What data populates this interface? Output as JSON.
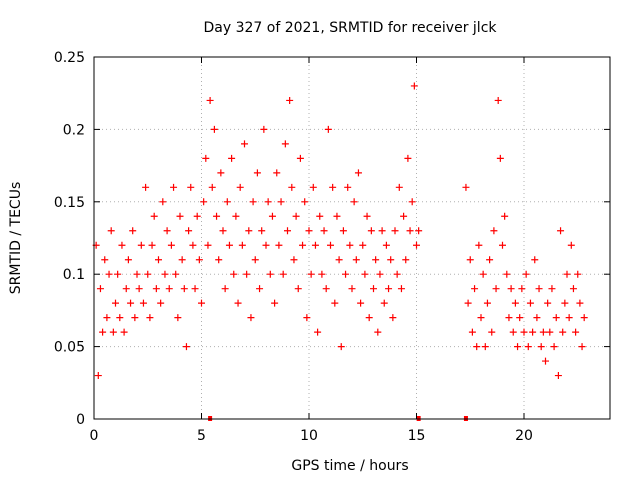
{
  "chart_data": {
    "type": "scatter",
    "title": "Day 327 of 2021, SRMTID for receiver jlck",
    "xlabel": "GPS time / hours",
    "ylabel": "SRMTID / TECUs",
    "xlim": [
      0,
      24
    ],
    "ylim": [
      0,
      0.25
    ],
    "xticks": [
      0,
      5,
      10,
      15,
      20
    ],
    "xtick_labels": [
      "0",
      "5",
      "10",
      "15",
      "20"
    ],
    "yticks": [
      0,
      0.05,
      0.1,
      0.15,
      0.2,
      0.25
    ],
    "ytick_labels": [
      "0",
      "0.05",
      "0.1",
      "0.15",
      "0.2",
      "0.25"
    ],
    "grid": true,
    "legend": "none",
    "series": [
      {
        "name": "SRMTID",
        "color": "#ff0000",
        "marker": "plus",
        "x": [
          0.1,
          0.2,
          0.3,
          0.4,
          0.5,
          0.6,
          0.7,
          0.8,
          0.9,
          1.0,
          1.1,
          1.2,
          1.3,
          1.4,
          1.5,
          1.6,
          1.7,
          1.8,
          1.9,
          2.0,
          2.1,
          2.2,
          2.3,
          2.4,
          2.5,
          2.6,
          2.7,
          2.8,
          2.9,
          3.0,
          3.1,
          3.2,
          3.3,
          3.4,
          3.5,
          3.6,
          3.7,
          3.8,
          3.9,
          4.0,
          4.1,
          4.2,
          4.3,
          4.4,
          4.5,
          4.6,
          4.7,
          4.8,
          4.9,
          5.0,
          5.1,
          5.2,
          5.3,
          5.4,
          5.5,
          5.6,
          5.7,
          5.8,
          5.9,
          6.0,
          6.1,
          6.2,
          6.3,
          6.4,
          6.5,
          6.6,
          6.7,
          6.8,
          6.9,
          7.0,
          7.1,
          7.2,
          7.3,
          7.4,
          7.5,
          7.6,
          7.7,
          7.8,
          7.9,
          8.0,
          8.1,
          8.2,
          8.3,
          8.4,
          8.5,
          8.6,
          8.7,
          8.8,
          8.9,
          9.0,
          9.1,
          9.2,
          9.3,
          9.4,
          9.5,
          9.6,
          9.7,
          9.8,
          9.9,
          10.0,
          10.1,
          10.2,
          10.3,
          10.4,
          10.5,
          10.6,
          10.7,
          10.8,
          10.9,
          11.0,
          11.1,
          11.2,
          11.3,
          11.4,
          11.5,
          11.6,
          11.7,
          11.8,
          11.9,
          12.0,
          12.1,
          12.2,
          12.3,
          12.4,
          12.5,
          12.6,
          12.7,
          12.8,
          12.9,
          13.0,
          13.1,
          13.2,
          13.3,
          13.4,
          13.5,
          13.6,
          13.7,
          13.8,
          13.9,
          14.0,
          14.1,
          14.2,
          14.3,
          14.4,
          14.5,
          14.6,
          14.7,
          14.8,
          14.9,
          15.0,
          15.1,
          17.3,
          17.4,
          17.5,
          17.6,
          17.7,
          17.8,
          17.9,
          18.0,
          18.1,
          18.2,
          18.3,
          18.4,
          18.5,
          18.6,
          18.7,
          18.8,
          18.9,
          19.0,
          19.1,
          19.2,
          19.3,
          19.4,
          19.5,
          19.6,
          19.7,
          19.8,
          19.9,
          20.0,
          20.1,
          20.2,
          20.3,
          20.4,
          20.5,
          20.6,
          20.7,
          20.8,
          20.9,
          21.0,
          21.1,
          21.2,
          21.3,
          21.4,
          21.5,
          21.6,
          21.7,
          21.8,
          21.9,
          22.0,
          22.1,
          22.2,
          22.3,
          22.4,
          22.5,
          22.6,
          22.7,
          22.8
        ],
        "y": [
          0.12,
          0.03,
          0.09,
          0.06,
          0.11,
          0.07,
          0.1,
          0.13,
          0.06,
          0.08,
          0.1,
          0.07,
          0.12,
          0.06,
          0.09,
          0.11,
          0.08,
          0.13,
          0.07,
          0.1,
          0.09,
          0.12,
          0.08,
          0.16,
          0.1,
          0.07,
          0.12,
          0.14,
          0.09,
          0.11,
          0.08,
          0.15,
          0.1,
          0.13,
          0.09,
          0.12,
          0.16,
          0.1,
          0.07,
          0.14,
          0.11,
          0.09,
          0.05,
          0.13,
          0.16,
          0.12,
          0.09,
          0.14,
          0.11,
          0.08,
          0.15,
          0.18,
          0.12,
          0.22,
          0.16,
          0.2,
          0.14,
          0.11,
          0.17,
          0.13,
          0.09,
          0.15,
          0.12,
          0.18,
          0.1,
          0.14,
          0.08,
          0.16,
          0.12,
          0.19,
          0.1,
          0.13,
          0.07,
          0.15,
          0.11,
          0.17,
          0.09,
          0.13,
          0.2,
          0.12,
          0.15,
          0.1,
          0.14,
          0.08,
          0.17,
          0.12,
          0.15,
          0.1,
          0.19,
          0.13,
          0.22,
          0.16,
          0.11,
          0.14,
          0.09,
          0.18,
          0.12,
          0.15,
          0.07,
          0.13,
          0.1,
          0.16,
          0.12,
          0.06,
          0.14,
          0.1,
          0.13,
          0.09,
          0.2,
          0.12,
          0.16,
          0.08,
          0.14,
          0.11,
          0.05,
          0.13,
          0.1,
          0.16,
          0.12,
          0.09,
          0.15,
          0.11,
          0.17,
          0.08,
          0.12,
          0.1,
          0.14,
          0.07,
          0.13,
          0.09,
          0.11,
          0.06,
          0.1,
          0.13,
          0.08,
          0.12,
          0.09,
          0.11,
          0.07,
          0.13,
          0.1,
          0.16,
          0.09,
          0.14,
          0.11,
          0.18,
          0.13,
          0.15,
          0.23,
          0.12,
          0.13,
          0.16,
          0.08,
          0.11,
          0.06,
          0.09,
          0.05,
          0.12,
          0.07,
          0.1,
          0.05,
          0.08,
          0.11,
          0.06,
          0.13,
          0.09,
          0.22,
          0.18,
          0.12,
          0.14,
          0.1,
          0.07,
          0.09,
          0.06,
          0.08,
          0.05,
          0.07,
          0.09,
          0.06,
          0.1,
          0.05,
          0.08,
          0.06,
          0.11,
          0.07,
          0.09,
          0.05,
          0.06,
          0.04,
          0.08,
          0.06,
          0.09,
          0.05,
          0.07,
          0.03,
          0.13,
          0.06,
          0.08,
          0.1,
          0.07,
          0.12,
          0.09,
          0.06,
          0.1,
          0.08,
          0.05,
          0.07
        ]
      }
    ],
    "data_gap_markers_x": [
      5.4,
      15.1,
      17.3
    ]
  }
}
